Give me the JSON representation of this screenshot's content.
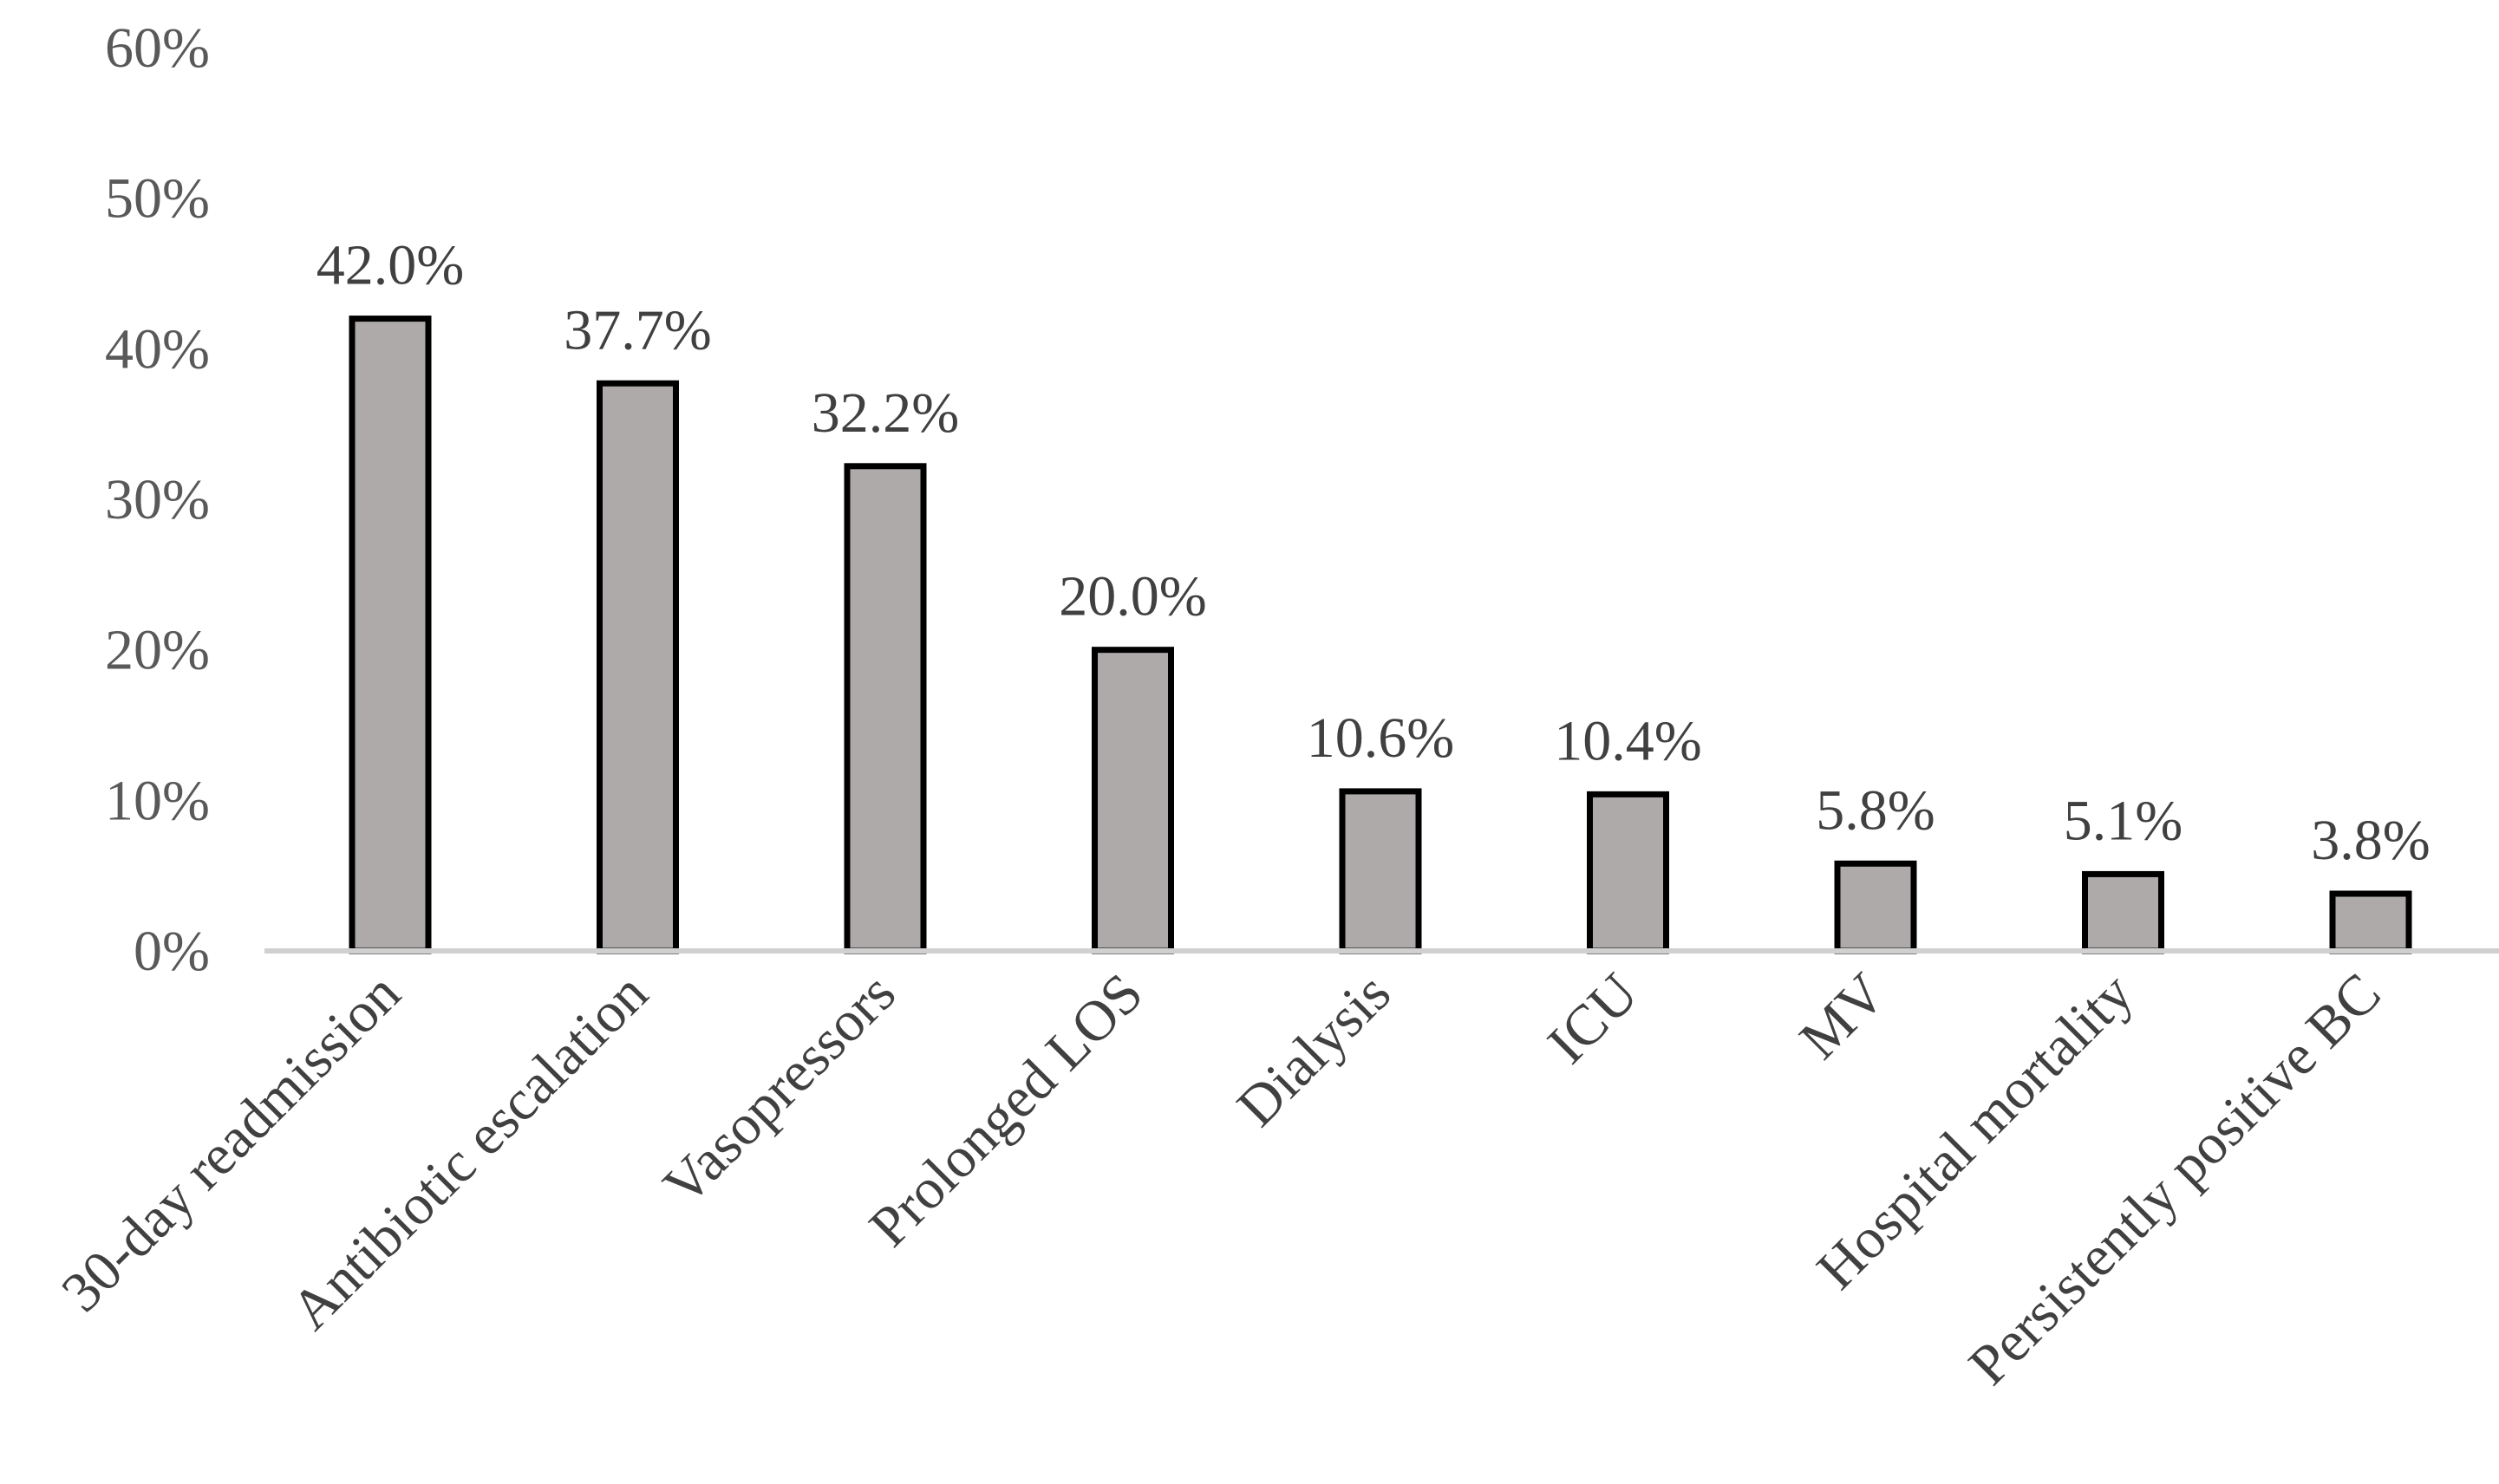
{
  "chart_data": {
    "type": "bar",
    "title": "",
    "xlabel": "",
    "ylabel": "",
    "categories": [
      "30-day readmission",
      "Antibiotic escalation",
      "Vasopressors",
      "Prolonged LOS",
      "Dialysis",
      "ICU",
      "MV",
      "Hospital mortality",
      "Persistently positive BC"
    ],
    "values": [
      42.0,
      37.7,
      32.2,
      20.0,
      10.6,
      10.4,
      5.8,
      5.1,
      3.8
    ],
    "value_labels": [
      "42.0%",
      "37.7%",
      "32.2%",
      "20.0%",
      "10.6%",
      "10.4%",
      "5.8%",
      "5.1%",
      "3.8%"
    ],
    "ylim": [
      0,
      60
    ],
    "yticks": [
      0,
      10,
      20,
      30,
      40,
      50,
      60
    ],
    "ytick_labels": [
      "0%",
      "10%",
      "20%",
      "30%",
      "40%",
      "50%",
      "60%"
    ],
    "grid": false,
    "legend": "none",
    "colors": {
      "bar_fill": "#aeaaaa",
      "bar_outline": "#000000",
      "axis": "#d0d0d0"
    }
  }
}
